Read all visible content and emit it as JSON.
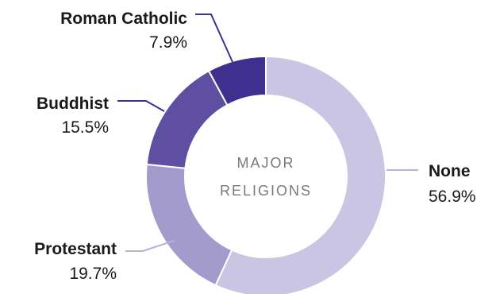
{
  "chart_data": {
    "type": "pie",
    "center_label": [
      "MAJOR",
      "RELIGIONS"
    ],
    "categories": [
      "None",
      "Protestant",
      "Buddhist",
      "Roman Catholic"
    ],
    "values": [
      56.9,
      19.7,
      15.5,
      7.9
    ],
    "value_labels": [
      "56.9%",
      "19.7%",
      "15.5%",
      "7.9%"
    ],
    "colors": [
      "#c9c5e3",
      "#a39bcb",
      "#5e4fa2",
      "#3f2f8f"
    ],
    "leader_color": "#b8b2da",
    "leader_color_dark": "#3f2f8f"
  }
}
